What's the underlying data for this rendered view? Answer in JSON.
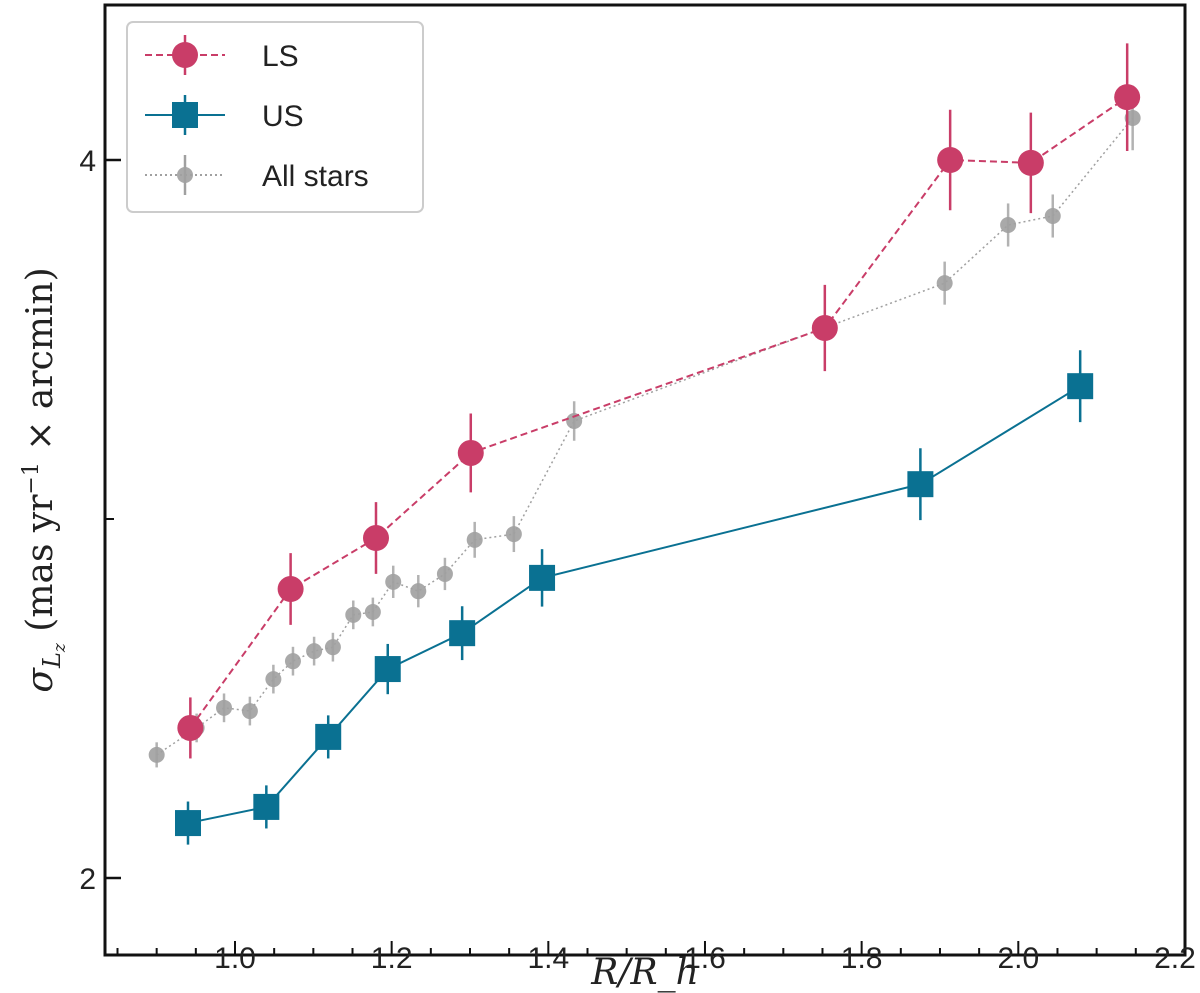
{
  "chart_data": {
    "type": "line",
    "title": "",
    "xlabel": "R/R_h",
    "ylabel": "σ_{L_z} (mas yr^{-1} × arcmin)",
    "xlim": [
      0.84,
      2.22
    ],
    "ylim": [
      1.79,
      4.43
    ],
    "x_ticks": [
      "1.0",
      "1.2",
      "1.4",
      "1.6",
      "1.8",
      "2.0",
      "2.2"
    ],
    "y_ticks": [
      "2",
      "4"
    ],
    "y_minor_ticks": [
      3
    ],
    "grid": false,
    "legend_position": "top-left",
    "series": [
      {
        "name": "LS",
        "color": "#c93d68",
        "marker": "circle",
        "linestyle": "dashed",
        "x": [
          0.943,
          1.071,
          1.18,
          1.301,
          1.753,
          1.913,
          2.016,
          2.139
        ],
        "y": [
          2.418,
          2.805,
          2.947,
          3.184,
          3.532,
          4.0,
          3.992,
          4.175
        ],
        "yerr": [
          0.085,
          0.1,
          0.1,
          0.11,
          0.12,
          0.14,
          0.14,
          0.15
        ]
      },
      {
        "name": "US",
        "color": "#0a7192",
        "marker": "square",
        "linestyle": "solid",
        "x": [
          0.94,
          1.04,
          1.119,
          1.195,
          1.29,
          1.392,
          1.875,
          2.079
        ],
        "y": [
          2.153,
          2.198,
          2.393,
          2.582,
          2.682,
          2.836,
          3.097,
          3.37
        ],
        "yerr": [
          0.06,
          0.06,
          0.06,
          0.07,
          0.075,
          0.08,
          0.1,
          0.1
        ]
      },
      {
        "name": "All stars",
        "color": "#a0a0a0",
        "marker": "circle-small",
        "linestyle": "dotted",
        "x": [
          0.9,
          0.951,
          0.986,
          1.019,
          1.049,
          1.074,
          1.101,
          1.125,
          1.151,
          1.176,
          1.202,
          1.234,
          1.268,
          1.306,
          1.356,
          1.433,
          1.906,
          1.987,
          2.044,
          2.146
        ],
        "y": [
          2.343,
          2.418,
          2.474,
          2.465,
          2.554,
          2.604,
          2.632,
          2.643,
          2.733,
          2.741,
          2.825,
          2.799,
          2.847,
          2.942,
          2.958,
          3.273,
          3.657,
          3.819,
          3.844,
          4.117
        ],
        "yerr": [
          0.035,
          0.04,
          0.04,
          0.04,
          0.04,
          0.04,
          0.04,
          0.04,
          0.04,
          0.04,
          0.045,
          0.045,
          0.045,
          0.05,
          0.05,
          0.055,
          0.06,
          0.06,
          0.06,
          0.09
        ]
      }
    ]
  }
}
